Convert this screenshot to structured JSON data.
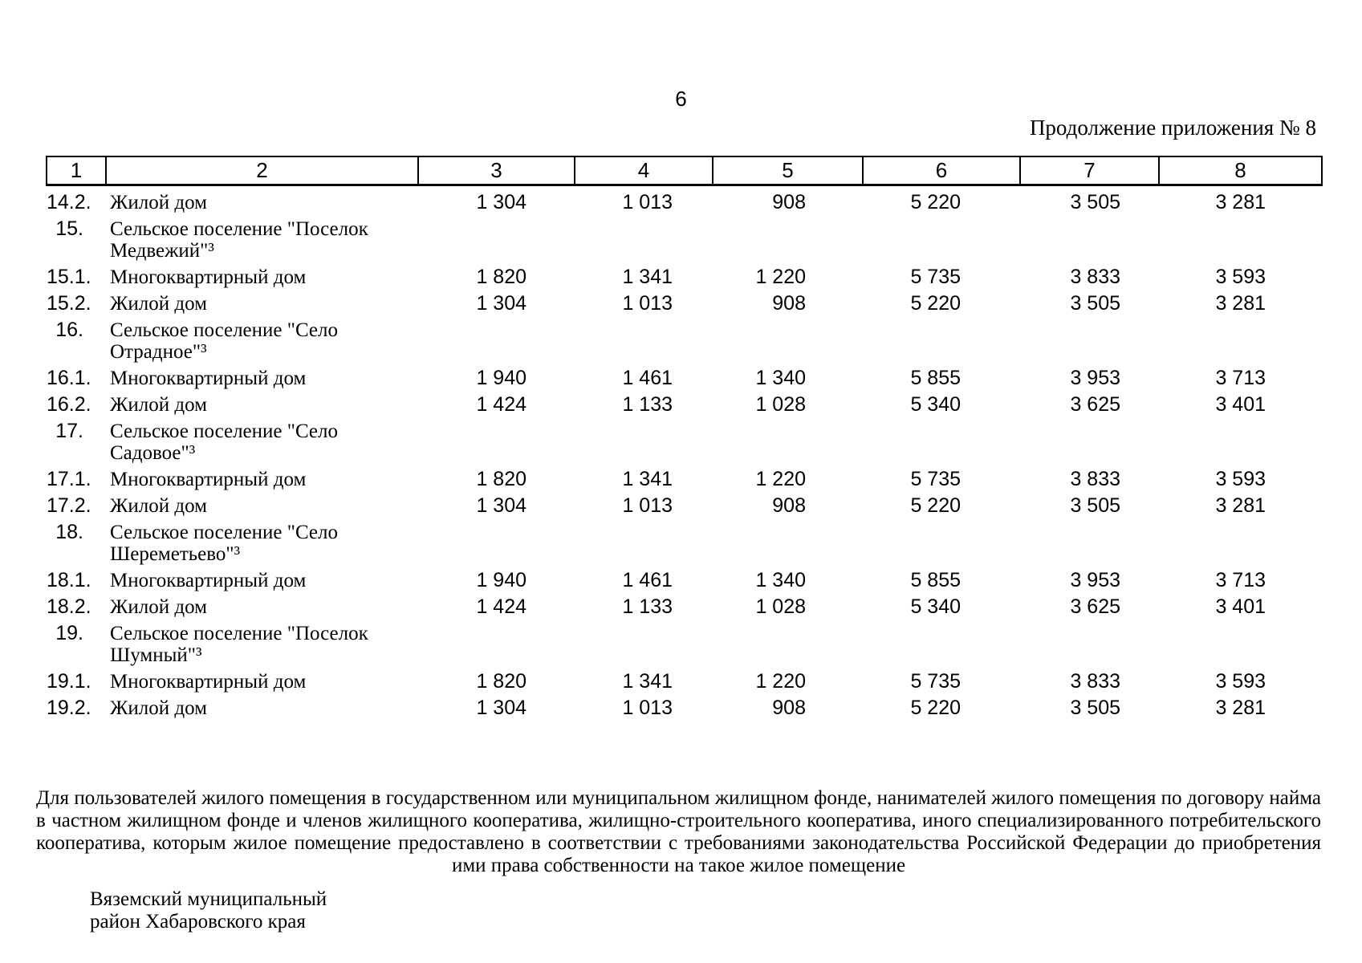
{
  "page": {
    "page_number": "6",
    "continuation_title": "Продолжение приложения № 8"
  },
  "table": {
    "column_headers": [
      "1",
      "2",
      "3",
      "4",
      "5",
      "6",
      "7",
      "8"
    ],
    "rows": [
      {
        "num": "14.2.",
        "name": "Жилой дом",
        "values": [
          "1 304",
          "1 013",
          "908",
          "5 220",
          "3 505",
          "3 281"
        ]
      },
      {
        "num": "15.",
        "name": "Сельское поселение \"Поселок\nМедвежий\"³",
        "values": [
          "",
          "",
          "",
          "",
          "",
          ""
        ]
      },
      {
        "num": "15.1.",
        "name": "Многоквартирный дом",
        "values": [
          "1 820",
          "1 341",
          "1 220",
          "5 735",
          "3 833",
          "3 593"
        ]
      },
      {
        "num": "15.2.",
        "name": "Жилой дом",
        "values": [
          "1 304",
          "1 013",
          "908",
          "5 220",
          "3 505",
          "3 281"
        ]
      },
      {
        "num": "16.",
        "name": "Сельское поселение \"Село\nОтрадное\"³",
        "values": [
          "",
          "",
          "",
          "",
          "",
          ""
        ]
      },
      {
        "num": "16.1.",
        "name": "Многоквартирный дом",
        "values": [
          "1 940",
          "1 461",
          "1 340",
          "5 855",
          "3 953",
          "3 713"
        ]
      },
      {
        "num": "16.2.",
        "name": "Жилой дом",
        "values": [
          "1 424",
          "1 133",
          "1 028",
          "5 340",
          "3 625",
          "3 401"
        ]
      },
      {
        "num": "17.",
        "name": "Сельское поселение \"Село\nСадовое\"³",
        "values": [
          "",
          "",
          "",
          "",
          "",
          ""
        ]
      },
      {
        "num": "17.1.",
        "name": "Многоквартирный дом",
        "values": [
          "1 820",
          "1 341",
          "1 220",
          "5 735",
          "3 833",
          "3 593"
        ]
      },
      {
        "num": "17.2.",
        "name": "Жилой дом",
        "values": [
          "1 304",
          "1 013",
          "908",
          "5 220",
          "3 505",
          "3 281"
        ]
      },
      {
        "num": "18.",
        "name": "Сельское поселение \"Село\nШереметьево\"³",
        "values": [
          "",
          "",
          "",
          "",
          "",
          ""
        ]
      },
      {
        "num": "18.1.",
        "name": "Многоквартирный дом",
        "values": [
          "1 940",
          "1 461",
          "1 340",
          "5 855",
          "3 953",
          "3 713"
        ]
      },
      {
        "num": "18.2.",
        "name": "Жилой дом",
        "values": [
          "1 424",
          "1 133",
          "1 028",
          "5 340",
          "3 625",
          "3 401"
        ]
      },
      {
        "num": "19.",
        "name": "Сельское поселение \"Поселок\nШумный\"³",
        "values": [
          "",
          "",
          "",
          "",
          "",
          ""
        ]
      },
      {
        "num": "19.1.",
        "name": "Многоквартирный дом",
        "values": [
          "1 820",
          "1 341",
          "1 220",
          "5 735",
          "3 833",
          "3 593"
        ]
      },
      {
        "num": "19.2.",
        "name": "Жилой дом",
        "values": [
          "1 304",
          "1 013",
          "908",
          "5 220",
          "3 505",
          "3 281"
        ]
      }
    ]
  },
  "footer": {
    "note": "Для пользователей жилого помещения в государственном или муниципальном жилищном фонде, нанимателей жилого помещения по договору найма в частном жилищном фонде и членов жилищного кооператива, жилищно-строительного кооператива, иного специализированного потребительского кооператива, которым жилое помещение предоставлено в соответствии с требованиями законодательства Российской Федерации до приобретения ими права собственности на такое жилое помещение",
    "district": "Вяземский муниципальный\nрайон Хабаровского края"
  }
}
